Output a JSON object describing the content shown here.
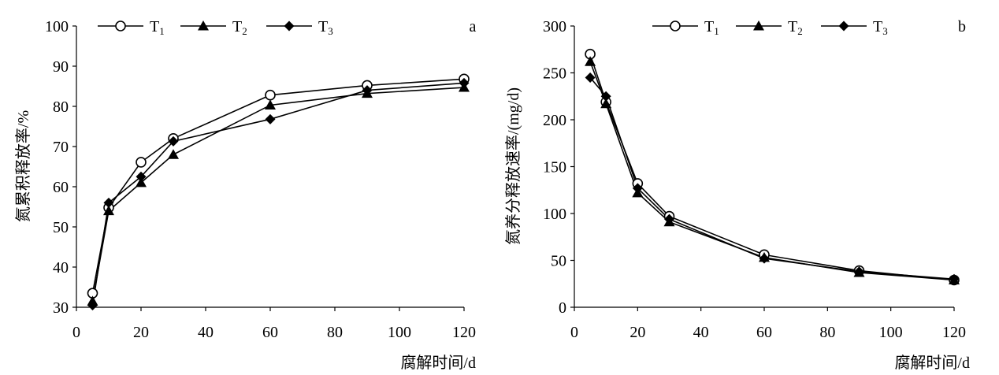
{
  "chart_data": [
    {
      "type": "line",
      "panel_label": "a",
      "xlabel": "腐解时间/d",
      "ylabel": "氮累积释放率/%",
      "xlim": [
        0,
        120
      ],
      "ylim": [
        30,
        100
      ],
      "xticks": [
        0,
        20,
        40,
        60,
        80,
        100,
        120
      ],
      "yticks": [
        30,
        40,
        50,
        60,
        70,
        80,
        90,
        100
      ],
      "x": [
        5,
        10,
        20,
        30,
        60,
        90,
        120
      ],
      "grid": false,
      "legend_position": "top",
      "series": [
        {
          "name": "T",
          "subscript": "1",
          "marker": "circle-open",
          "values": [
            33.5,
            54.8,
            66.1,
            72.0,
            82.8,
            85.2,
            86.8
          ]
        },
        {
          "name": "T",
          "subscript": "2",
          "marker": "triangle-filled",
          "values": [
            31.5,
            54.0,
            61.0,
            68.0,
            80.3,
            83.2,
            84.7
          ]
        },
        {
          "name": "T",
          "subscript": "3",
          "marker": "diamond-filled",
          "values": [
            30.5,
            56.0,
            62.5,
            71.3,
            76.8,
            84.0,
            85.8
          ]
        }
      ]
    },
    {
      "type": "line",
      "panel_label": "b",
      "xlabel": "腐解时间/d",
      "ylabel": "氮养分释放速率/(mg/d)",
      "xlim": [
        0,
        120
      ],
      "ylim": [
        0,
        300
      ],
      "xticks": [
        0,
        20,
        40,
        60,
        80,
        100,
        120
      ],
      "yticks": [
        0,
        50,
        100,
        150,
        200,
        250,
        300
      ],
      "x": [
        5,
        10,
        20,
        30,
        60,
        90,
        120
      ],
      "grid": false,
      "legend_position": "top",
      "series": [
        {
          "name": "T",
          "subscript": "1",
          "marker": "circle-open",
          "values": [
            270,
            219,
            132,
            97,
            56,
            39,
            29
          ]
        },
        {
          "name": "T",
          "subscript": "2",
          "marker": "triangle-filled",
          "values": [
            262,
            217,
            122,
            91,
            53,
            37,
            29
          ]
        },
        {
          "name": "T",
          "subscript": "3",
          "marker": "diamond-filled",
          "values": [
            245,
            225,
            127,
            94,
            52,
            38,
            30
          ]
        }
      ]
    }
  ]
}
